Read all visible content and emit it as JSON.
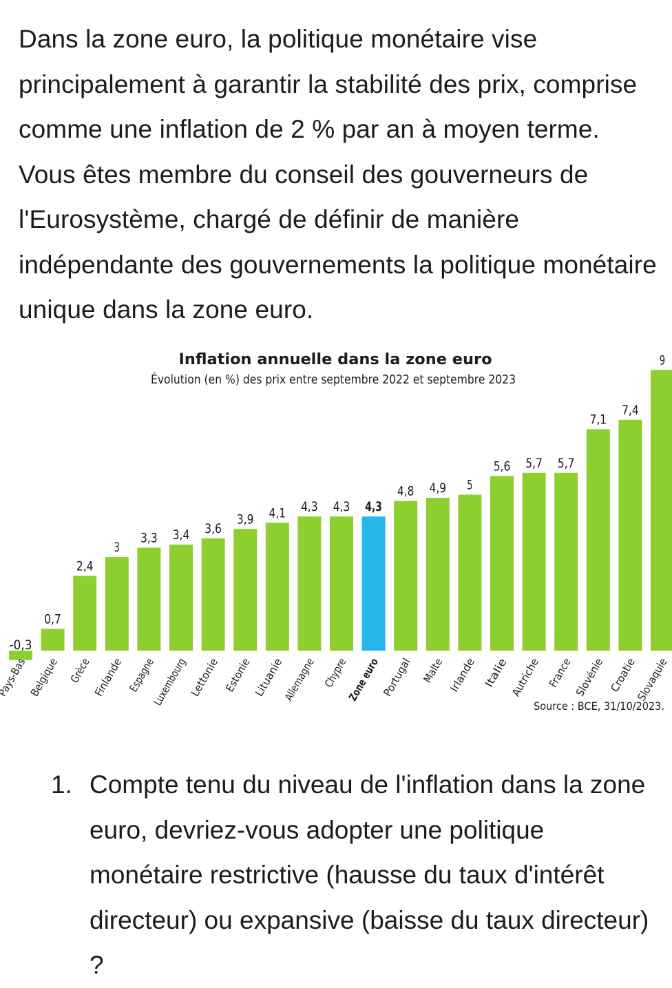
{
  "intro_text": "Dans la zone euro, la politique monétaire vise principalement à garantir la stabilité des prix, comprise comme une inflation de 2 % par an à moyen terme. Vous êtes membre du conseil des gouverneurs de l'Eurosystème, chargé de définir de manière indépendante des gouvernements la politique monétaire unique dans la zone euro.",
  "question": {
    "number": "1.",
    "text": "Compte tenu du niveau de l'inflation dans la zone euro, devriez-vous adopter une politique monétaire restrictive (hausse du taux d'intérêt directeur) ou expansive (baisse du taux directeur) ?"
  },
  "colors": {
    "bar": "#8ccf2e",
    "highlight": "#27b7ec",
    "text": "#1c1c1c"
  },
  "chart_data": {
    "type": "bar",
    "title": "Inflation annuelle dans la zone euro",
    "subtitle": "Évolution (en %) des prix entre septembre 2022 et septembre 2023",
    "source": "Source : BCE, 31/10/2023.",
    "highlight_category": "Zone euro",
    "categories": [
      "Pays-Bas",
      "Belgique",
      "Grèce",
      "Finlande",
      "Espagne",
      "Luxembourg",
      "Lettonie",
      "Estonie",
      "Lituanie",
      "Allemagne",
      "Chypre",
      "Zone euro",
      "Portugal",
      "Malte",
      "Irlande",
      "Italie",
      "Autriche",
      "France",
      "Slovénie",
      "Croatie",
      "Slovaquie"
    ],
    "values": [
      -0.3,
      0.7,
      2.4,
      3,
      3.3,
      3.4,
      3.6,
      3.9,
      4.1,
      4.3,
      4.3,
      4.3,
      4.8,
      4.9,
      5,
      5.6,
      5.7,
      5.7,
      7.1,
      7.4,
      9
    ],
    "value_labels": [
      "-0,3",
      "0,7",
      "2,4",
      "3",
      "3,3",
      "3,4",
      "3,6",
      "3,9",
      "4,1",
      "4,3",
      "4,3",
      "4,3",
      "4,8",
      "4,9",
      "5",
      "5,6",
      "5,7",
      "5,7",
      "7,1",
      "7,4",
      "9"
    ],
    "ylim": [
      -0.3,
      9
    ],
    "grid": false,
    "legend": "none"
  }
}
